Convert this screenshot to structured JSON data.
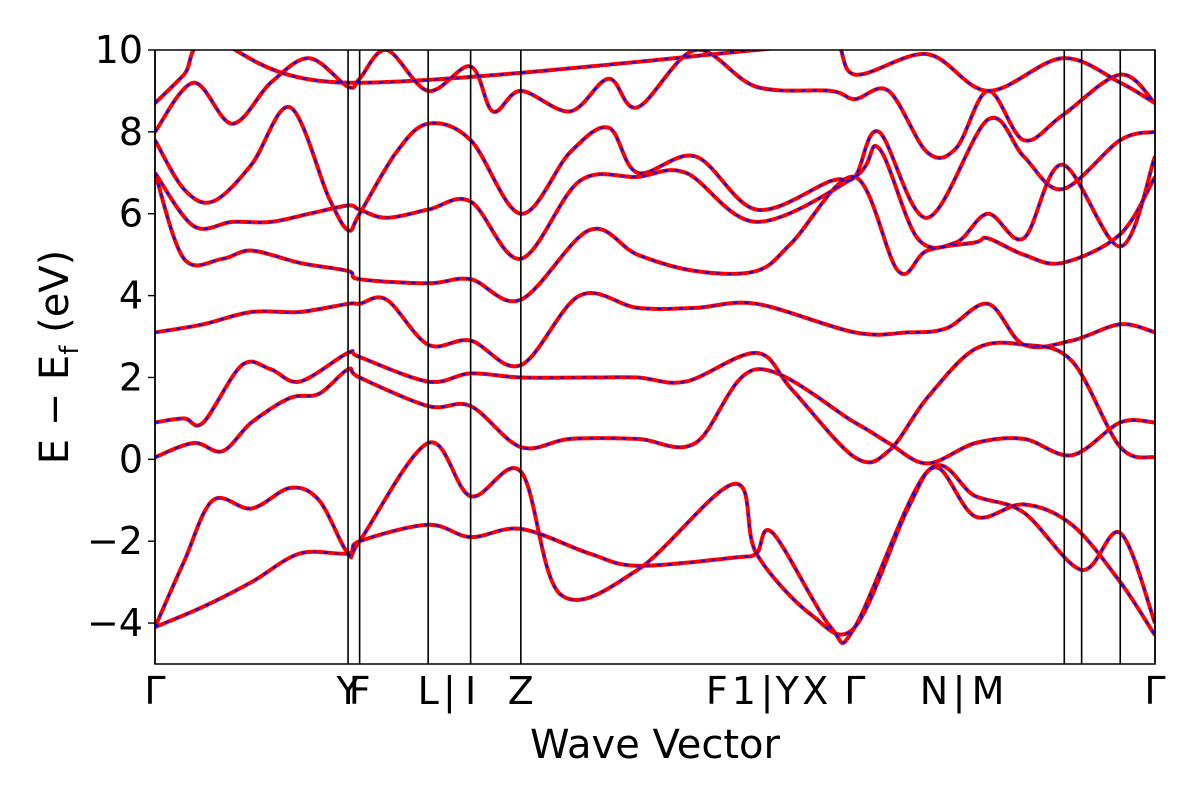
{
  "chart_data": {
    "type": "line",
    "title": "",
    "xlabel": "Wave Vector",
    "ylabel": "E − E_f (eV)",
    "ylabel_parts": {
      "main": "E  −  E",
      "sub": "f",
      "unit": " (eV)"
    },
    "ylim": [
      -5,
      10
    ],
    "yticks": [
      -4,
      -2,
      0,
      2,
      4,
      6,
      8,
      10
    ],
    "ytick_labels": [
      "−4",
      "−2",
      "0",
      "2",
      "4",
      "6",
      "8",
      "10"
    ],
    "grid": false,
    "legend": "none",
    "xlim": [
      0,
      10.36
    ],
    "high_symmetry_lines": [
      0,
      2.0,
      2.12,
      2.83,
      3.27,
      3.79,
      9.42,
      9.6,
      10.0,
      10.36
    ],
    "xtick_labels": [
      {
        "x": 0.0,
        "text": "Γ"
      },
      {
        "x": 2.0,
        "text": "Y"
      },
      {
        "x": 2.12,
        "text": "F"
      },
      {
        "x": 2.83,
        "text": "L"
      },
      {
        "x": 3.05,
        "text": "|"
      },
      {
        "x": 3.27,
        "text": "I"
      },
      {
        "x": 3.79,
        "text": "Z"
      },
      {
        "x": 5.82,
        "text": "F"
      },
      {
        "x": 6.1,
        "text": "1"
      },
      {
        "x": 6.34,
        "text": "|"
      },
      {
        "x": 6.55,
        "text": "Y"
      },
      {
        "x": 6.84,
        "text": "X"
      },
      {
        "x": 7.25,
        "text": "Γ"
      },
      {
        "x": 8.07,
        "text": "N"
      },
      {
        "x": 8.33,
        "text": "|"
      },
      {
        "x": 8.63,
        "text": "M"
      },
      {
        "x": 10.36,
        "text": "Γ"
      }
    ],
    "series_styles": [
      {
        "color": "#ff0000",
        "width": 4,
        "dash": ""
      },
      {
        "color": "#0000ff",
        "width": 2,
        "dash": "4,7"
      }
    ],
    "bands": [
      [
        [
          0,
          -4.1
        ],
        [
          0.5,
          -3.6
        ],
        [
          1.0,
          -3.0
        ],
        [
          1.5,
          -2.3
        ],
        [
          2.0,
          -2.3
        ],
        [
          2.12,
          -2.0
        ],
        [
          2.83,
          -1.6
        ],
        [
          3.27,
          -1.9
        ],
        [
          3.79,
          -1.7
        ],
        [
          4.5,
          -2.3
        ],
        [
          5.0,
          -2.6
        ],
        [
          6.0,
          -2.4
        ],
        [
          6.23,
          -2.3
        ],
        [
          6.4,
          -1.8
        ],
        [
          7.0,
          -4.1
        ],
        [
          7.25,
          -4.1
        ],
        [
          8.0,
          -0.3
        ],
        [
          8.5,
          -0.9
        ],
        [
          9.0,
          -1.3
        ],
        [
          9.6,
          -2.7
        ],
        [
          10.0,
          -1.8
        ],
        [
          10.36,
          -4.0
        ]
      ],
      [
        [
          0,
          -4.1
        ],
        [
          0.3,
          -2.5
        ],
        [
          0.6,
          -1.0
        ],
        [
          1.0,
          -1.2
        ],
        [
          1.4,
          -0.7
        ],
        [
          1.7,
          -1.0
        ],
        [
          2.0,
          -2.3
        ],
        [
          2.12,
          -2.0
        ],
        [
          2.83,
          0.4
        ],
        [
          3.27,
          -0.9
        ],
        [
          3.79,
          -0.3
        ],
        [
          4.2,
          -3.3
        ],
        [
          5.0,
          -2.7
        ],
        [
          6.0,
          -0.6
        ],
        [
          6.23,
          -2.3
        ],
        [
          6.8,
          -3.8
        ],
        [
          7.25,
          -4.1
        ],
        [
          7.8,
          -1.2
        ],
        [
          8.1,
          -0.2
        ],
        [
          8.5,
          -1.4
        ],
        [
          9.0,
          -1.1
        ],
        [
          9.5,
          -1.6
        ],
        [
          10.0,
          -3.0
        ],
        [
          10.36,
          -4.3
        ]
      ],
      [
        [
          0,
          0.05
        ],
        [
          0.4,
          0.4
        ],
        [
          0.7,
          0.2
        ],
        [
          1.0,
          0.9
        ],
        [
          1.4,
          1.5
        ],
        [
          1.7,
          1.6
        ],
        [
          2.0,
          2.2
        ],
        [
          2.12,
          2.0
        ],
        [
          2.83,
          1.3
        ],
        [
          3.27,
          1.3
        ],
        [
          3.79,
          0.3
        ],
        [
          4.3,
          0.5
        ],
        [
          5.0,
          0.5
        ],
        [
          5.6,
          0.4
        ],
        [
          6.23,
          2.2
        ],
        [
          7.25,
          0.9
        ],
        [
          7.6,
          0.4
        ],
        [
          8.0,
          -0.1
        ],
        [
          8.5,
          0.4
        ],
        [
          9.0,
          0.5
        ],
        [
          9.5,
          0.1
        ],
        [
          10.0,
          0.9
        ],
        [
          10.36,
          0.9
        ]
      ],
      [
        [
          0,
          0.9
        ],
        [
          0.3,
          1.0
        ],
        [
          0.5,
          0.9
        ],
        [
          0.9,
          2.3
        ],
        [
          1.2,
          2.2
        ],
        [
          1.5,
          1.9
        ],
        [
          2.0,
          2.6
        ],
        [
          2.12,
          2.5
        ],
        [
          2.83,
          1.9
        ],
        [
          3.27,
          2.1
        ],
        [
          3.79,
          2.0
        ],
        [
          4.5,
          2.0
        ],
        [
          5.0,
          2.0
        ],
        [
          5.5,
          1.9
        ],
        [
          6.23,
          2.6
        ],
        [
          6.6,
          1.7
        ],
        [
          7.25,
          0.05
        ],
        [
          7.6,
          0.2
        ],
        [
          8.0,
          1.5
        ],
        [
          8.5,
          2.7
        ],
        [
          9.0,
          2.8
        ],
        [
          9.5,
          2.4
        ],
        [
          10.0,
          0.3
        ],
        [
          10.36,
          0.05
        ]
      ],
      [
        [
          0,
          3.1
        ],
        [
          0.5,
          3.3
        ],
        [
          1.0,
          3.6
        ],
        [
          1.5,
          3.6
        ],
        [
          2.0,
          3.8
        ],
        [
          2.12,
          3.8
        ],
        [
          2.4,
          3.9
        ],
        [
          2.83,
          2.8
        ],
        [
          3.27,
          2.9
        ],
        [
          3.79,
          2.3
        ],
        [
          4.4,
          4.0
        ],
        [
          5.0,
          3.7
        ],
        [
          5.6,
          3.7
        ],
        [
          6.23,
          3.8
        ],
        [
          7.25,
          3.1
        ],
        [
          7.8,
          3.1
        ],
        [
          8.2,
          3.2
        ],
        [
          8.63,
          3.8
        ],
        [
          9.0,
          2.8
        ],
        [
          9.5,
          2.9
        ],
        [
          10.0,
          3.3
        ],
        [
          10.36,
          3.1
        ]
      ],
      [
        [
          0,
          7.0
        ],
        [
          0.3,
          4.9
        ],
        [
          0.7,
          4.9
        ],
        [
          1.0,
          5.1
        ],
        [
          1.5,
          4.8
        ],
        [
          2.0,
          4.6
        ],
        [
          2.12,
          4.4
        ],
        [
          2.83,
          4.3
        ],
        [
          3.27,
          4.4
        ],
        [
          3.79,
          3.9
        ],
        [
          4.5,
          5.6
        ],
        [
          5.0,
          5.0
        ],
        [
          5.6,
          4.6
        ],
        [
          6.23,
          4.6
        ],
        [
          6.6,
          5.3
        ],
        [
          7.25,
          6.9
        ],
        [
          7.7,
          4.6
        ],
        [
          8.0,
          5.1
        ],
        [
          8.5,
          5.3
        ],
        [
          8.63,
          5.4
        ],
        [
          9.0,
          5.0
        ],
        [
          9.4,
          4.8
        ],
        [
          10.0,
          5.5
        ],
        [
          10.36,
          6.9
        ]
      ],
      [
        [
          0,
          7.0
        ],
        [
          0.4,
          5.7
        ],
        [
          0.8,
          5.8
        ],
        [
          1.2,
          5.8
        ],
        [
          1.6,
          6.0
        ],
        [
          2.0,
          6.2
        ],
        [
          2.12,
          6.1
        ],
        [
          2.4,
          5.9
        ],
        [
          2.83,
          6.1
        ],
        [
          3.27,
          6.3
        ],
        [
          3.79,
          4.9
        ],
        [
          4.4,
          6.8
        ],
        [
          5.0,
          6.9
        ],
        [
          5.5,
          7.0
        ],
        [
          6.23,
          5.8
        ],
        [
          7.25,
          6.9
        ],
        [
          7.5,
          7.6
        ],
        [
          7.9,
          5.4
        ],
        [
          8.3,
          5.3
        ],
        [
          8.63,
          6.0
        ],
        [
          9.0,
          5.4
        ],
        [
          9.4,
          7.2
        ],
        [
          10.0,
          5.2
        ],
        [
          10.36,
          7.4
        ]
      ],
      [
        [
          0,
          7.8
        ],
        [
          0.3,
          6.6
        ],
        [
          0.6,
          6.3
        ],
        [
          1.0,
          7.2
        ],
        [
          1.4,
          8.6
        ],
        [
          1.8,
          6.4
        ],
        [
          2.0,
          5.6
        ],
        [
          2.12,
          6.0
        ],
        [
          2.5,
          7.5
        ],
        [
          2.83,
          8.2
        ],
        [
          3.27,
          7.8
        ],
        [
          3.79,
          6.0
        ],
        [
          4.3,
          7.5
        ],
        [
          4.7,
          8.1
        ],
        [
          5.0,
          7.0
        ],
        [
          5.6,
          7.4
        ],
        [
          6.23,
          6.1
        ],
        [
          7.0,
          6.8
        ],
        [
          7.25,
          6.9
        ],
        [
          7.5,
          8.0
        ],
        [
          8.0,
          5.9
        ],
        [
          8.63,
          8.3
        ],
        [
          9.0,
          7.4
        ],
        [
          9.4,
          6.6
        ],
        [
          10.0,
          7.8
        ],
        [
          10.36,
          8.0
        ]
      ],
      [
        [
          0,
          8.0
        ],
        [
          0.4,
          9.2
        ],
        [
          0.8,
          8.2
        ],
        [
          1.2,
          9.2
        ],
        [
          1.6,
          9.8
        ],
        [
          2.0,
          9.1
        ],
        [
          2.12,
          9.3
        ],
        [
          2.4,
          10.0
        ],
        [
          2.83,
          9.0
        ],
        [
          3.27,
          9.6
        ],
        [
          3.5,
          8.5
        ],
        [
          3.79,
          9.0
        ],
        [
          4.3,
          8.5
        ],
        [
          4.7,
          9.3
        ],
        [
          5.0,
          8.6
        ],
        [
          5.6,
          10.0
        ],
        [
          6.23,
          9.1
        ],
        [
          7.0,
          9.0
        ],
        [
          7.25,
          8.8
        ],
        [
          7.6,
          9.0
        ],
        [
          8.0,
          7.5
        ],
        [
          8.3,
          7.6
        ],
        [
          8.63,
          9.0
        ],
        [
          9.0,
          7.8
        ],
        [
          9.4,
          8.4
        ],
        [
          10.0,
          9.4
        ],
        [
          10.36,
          8.7
        ]
      ],
      [
        [
          0,
          8.7
        ],
        [
          0.3,
          9.4
        ],
        [
          0.6,
          10.2
        ],
        [
          2.0,
          9.2
        ],
        [
          6.23,
          10.0
        ],
        [
          7.0,
          10.3
        ],
        [
          7.25,
          9.4
        ],
        [
          8.0,
          9.9
        ],
        [
          8.63,
          9.0
        ],
        [
          9.4,
          9.8
        ],
        [
          10.0,
          9.2
        ],
        [
          10.36,
          8.7
        ]
      ]
    ]
  }
}
